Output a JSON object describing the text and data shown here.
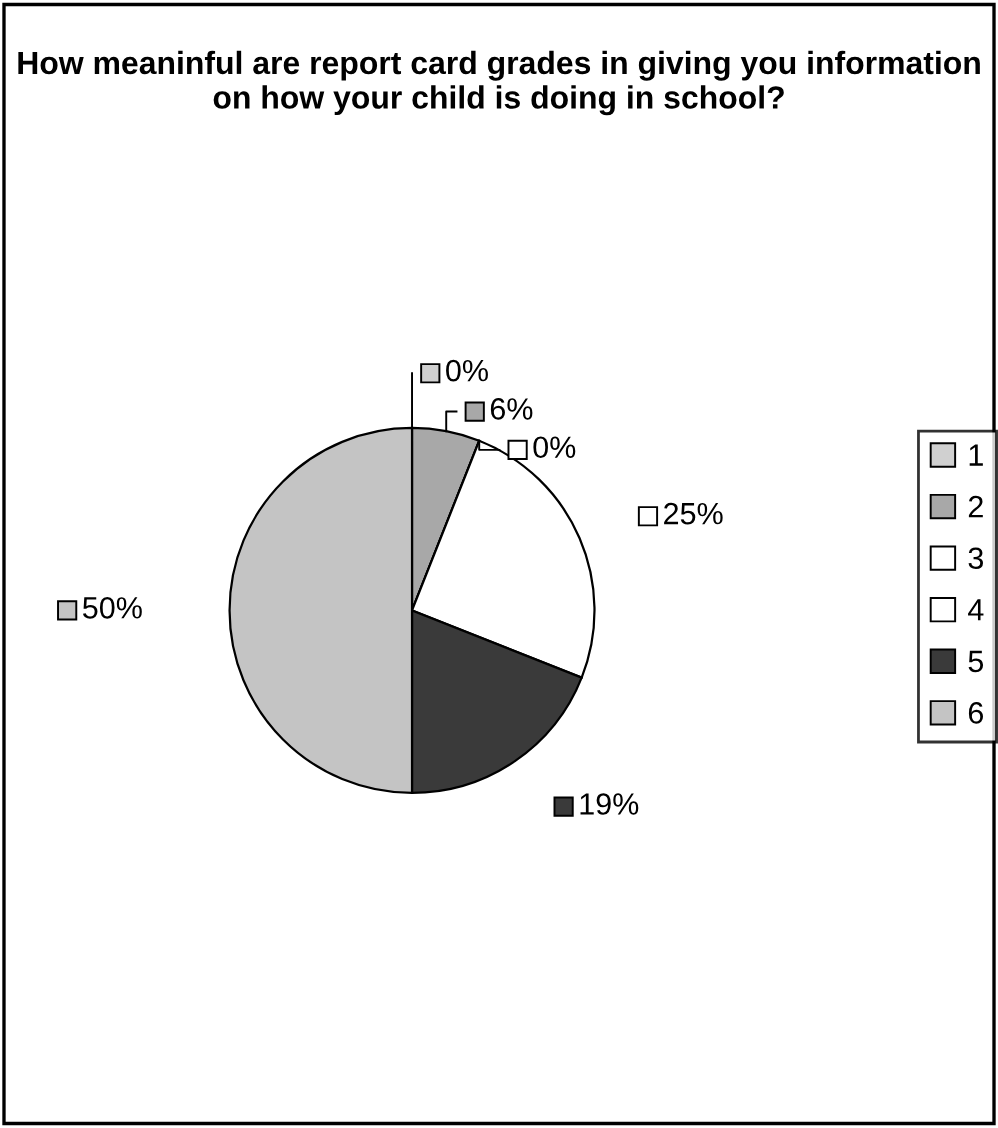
{
  "chart_data": {
    "type": "pie",
    "title": "How meaninful are report card grades in giving you information on how your child is doing in school?",
    "categories": [
      "1",
      "2",
      "3",
      "4",
      "5",
      "6"
    ],
    "values": [
      0,
      6,
      0,
      25,
      19,
      50
    ],
    "colors": [
      "#d0d0d0",
      "#a8a8a8",
      "#ffffff",
      "#ffffff",
      "#3a3a3a",
      "#c4c4c4"
    ],
    "value_labels": [
      "0%",
      "6%",
      "0%",
      "25%",
      "19%",
      "50%"
    ],
    "legend": "right"
  }
}
